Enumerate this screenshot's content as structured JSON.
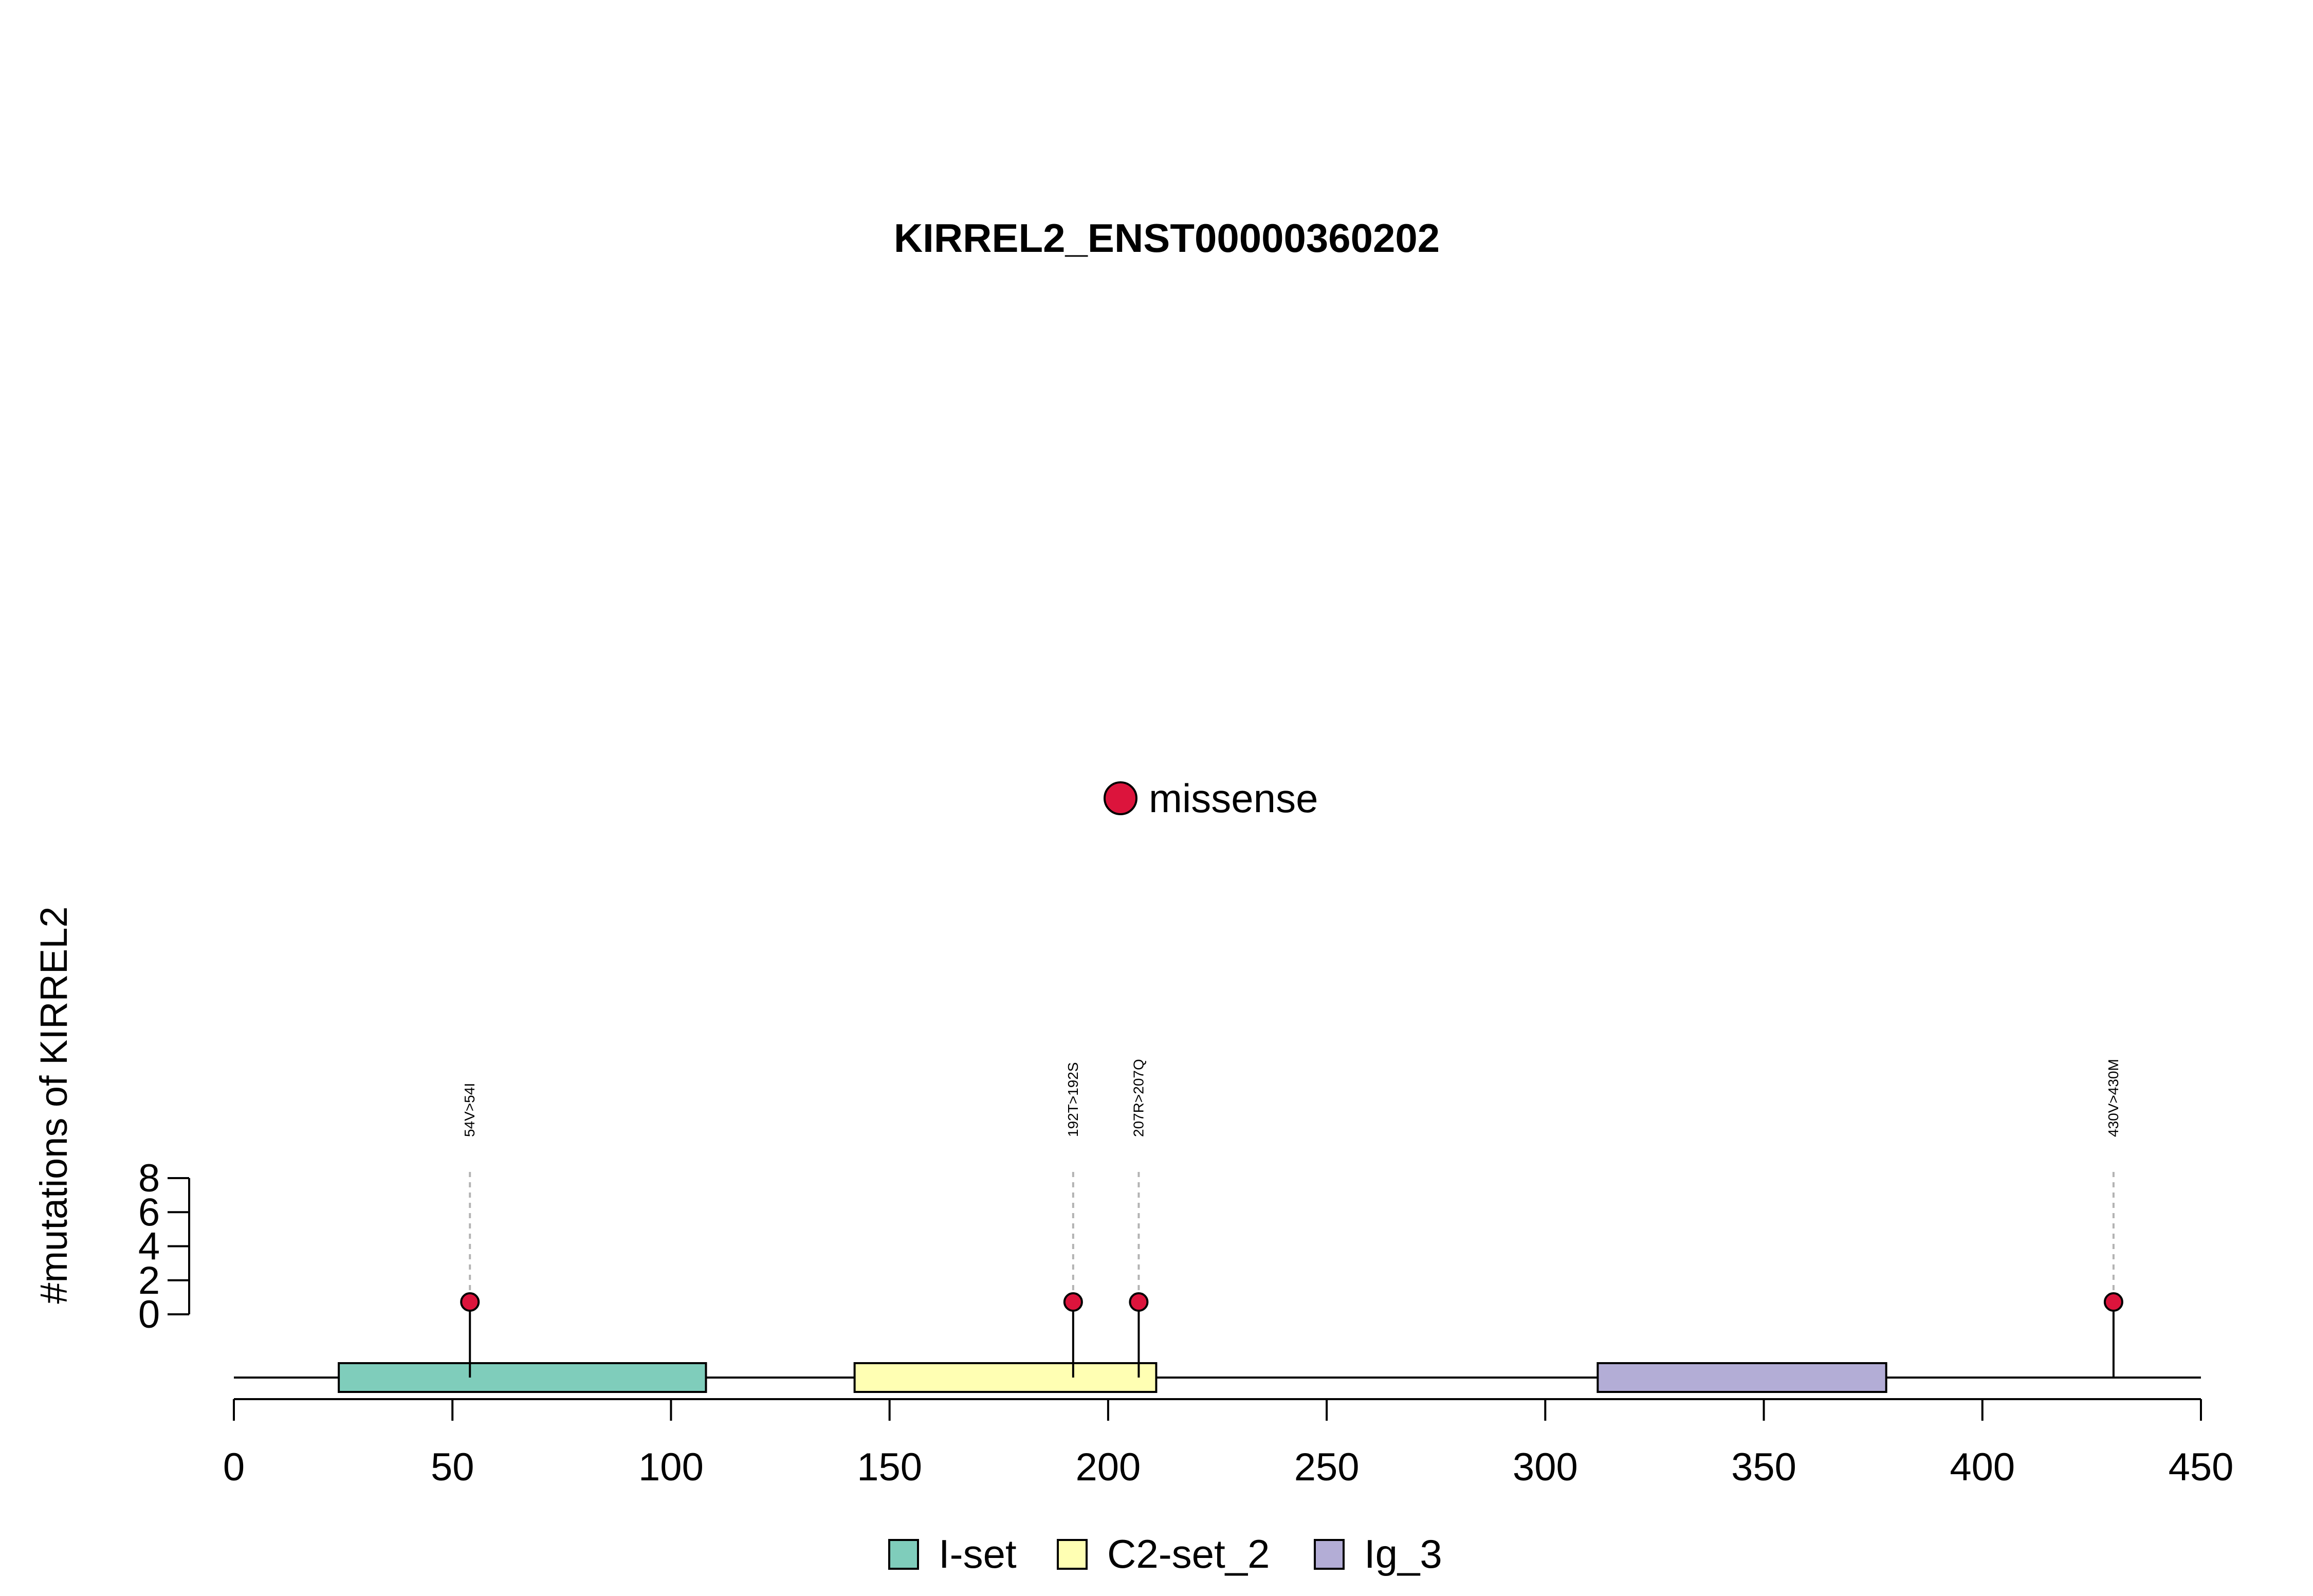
{
  "chart_data": {
    "type": "lollipop",
    "title": "KIRREL2_ENST00000360202",
    "ylabel": "#mutations of KIRREL2",
    "xlim": [
      0,
      450
    ],
    "x_ticks": [
      0,
      50,
      100,
      150,
      200,
      250,
      300,
      350,
      400,
      450
    ],
    "ylim": [
      0,
      8
    ],
    "y_ticks": [
      0,
      2,
      4,
      6,
      8
    ],
    "mutations": [
      {
        "position": 54,
        "label": "54V>54I",
        "count": 1,
        "type": "missense"
      },
      {
        "position": 192,
        "label": "192T>192S",
        "count": 1,
        "type": "missense"
      },
      {
        "position": 207,
        "label": "207R>207Q",
        "count": 1,
        "type": "missense"
      },
      {
        "position": 430,
        "label": "430V>430M",
        "count": 1,
        "type": "missense"
      }
    ],
    "domains": [
      {
        "name": "I-set",
        "start": 24,
        "end": 108,
        "color": "#7FCDBB"
      },
      {
        "name": "C2-set_2",
        "start": 142,
        "end": 211,
        "color": "#FFFFB3"
      },
      {
        "name": "Ig_3",
        "start": 312,
        "end": 378,
        "color": "#B3ADD6"
      }
    ],
    "mutation_legend": [
      {
        "label": "missense",
        "color": "#DC143C"
      }
    ],
    "domain_legend": [
      {
        "label": "I-set",
        "color": "#7FCDBB"
      },
      {
        "label": "C2-set_2",
        "color": "#FFFFB3"
      },
      {
        "label": "Ig_3",
        "color": "#B3ADD6"
      }
    ]
  }
}
